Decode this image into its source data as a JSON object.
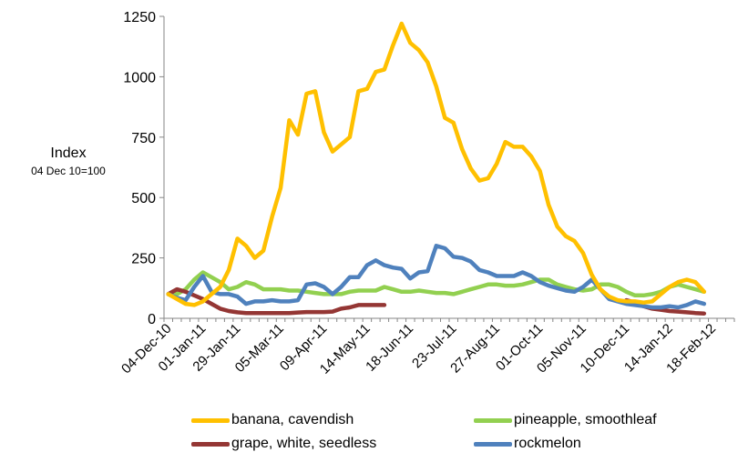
{
  "chart_data": {
    "type": "line",
    "title": "",
    "ylabel": "Index",
    "ylabel_note": "04 Dec 10=100",
    "xlabel": "",
    "ylim": [
      0,
      1250
    ],
    "yticks": [
      0,
      250,
      500,
      750,
      1000,
      1250
    ],
    "x_tick_labels": [
      "04-Dec-10",
      "01-Jan-11",
      "29-Jan-11",
      "05-Mar-11",
      "09-Apr-11",
      "14-May-11",
      "18-Jun-11",
      "23-Jul-11",
      "27-Aug-11",
      "01-Oct-11",
      "05-Nov-11",
      "10-Dec-11",
      "14-Jan-12",
      "18-Feb-12"
    ],
    "x_tick_weeks": [
      0,
      4,
      8,
      13,
      18,
      23,
      28,
      33,
      38,
      43,
      48,
      53,
      58,
      63
    ],
    "week_count": 66,
    "grid": false,
    "legend_position": "bottom",
    "series": [
      {
        "name": "banana, cavendish",
        "color": "#FFC000",
        "values": [
          100,
          80,
          60,
          55,
          70,
          100,
          130,
          200,
          330,
          300,
          250,
          280,
          420,
          540,
          820,
          760,
          930,
          940,
          770,
          690,
          720,
          750,
          940,
          950,
          1020,
          1030,
          1130,
          1220,
          1140,
          1110,
          1060,
          960,
          830,
          810,
          700,
          620,
          570,
          580,
          640,
          730,
          710,
          710,
          670,
          610,
          470,
          380,
          340,
          320,
          270,
          180,
          120,
          90,
          75,
          70,
          70,
          65,
          70,
          100,
          130,
          150,
          160,
          150,
          110
        ]
      },
      {
        "name": "pineapple, smoothleaf",
        "color": "#92D050",
        "values": [
          100,
          100,
          120,
          160,
          190,
          170,
          150,
          120,
          130,
          150,
          140,
          120,
          120,
          120,
          115,
          115,
          110,
          105,
          100,
          100,
          100,
          110,
          115,
          115,
          115,
          130,
          120,
          110,
          110,
          115,
          110,
          105,
          105,
          100,
          110,
          120,
          130,
          140,
          140,
          135,
          135,
          140,
          150,
          160,
          160,
          140,
          130,
          120,
          115,
          120,
          140,
          140,
          130,
          110,
          95,
          95,
          100,
          110,
          130,
          140,
          130,
          120,
          110
        ]
      },
      {
        "name": "grape, white, seedless",
        "color": "#943634",
        "values": [
          100,
          120,
          110,
          95,
          80,
          60,
          40,
          30,
          25,
          22,
          22,
          22,
          22,
          22,
          22,
          24,
          26,
          26,
          26,
          28,
          40,
          45,
          55,
          55,
          55,
          55,
          null,
          null,
          null,
          null,
          null,
          null,
          null,
          null,
          null,
          null,
          null,
          null,
          null,
          null,
          null,
          null,
          null,
          null,
          null,
          null,
          null,
          null,
          null,
          null,
          null,
          null,
          null,
          75,
          65,
          50,
          40,
          35,
          30,
          28,
          25,
          22,
          20
        ]
      },
      {
        "name": "rockmelon",
        "color": "#4F81BD",
        "values": [
          100,
          85,
          75,
          130,
          175,
          110,
          100,
          100,
          90,
          60,
          70,
          70,
          75,
          70,
          70,
          75,
          140,
          145,
          130,
          100,
          130,
          170,
          170,
          220,
          240,
          220,
          210,
          205,
          165,
          190,
          195,
          300,
          290,
          255,
          250,
          235,
          200,
          190,
          175,
          175,
          175,
          190,
          175,
          150,
          135,
          125,
          115,
          110,
          130,
          160,
          120,
          80,
          70,
          60,
          55,
          50,
          45,
          45,
          50,
          45,
          55,
          70,
          60
        ]
      }
    ]
  }
}
